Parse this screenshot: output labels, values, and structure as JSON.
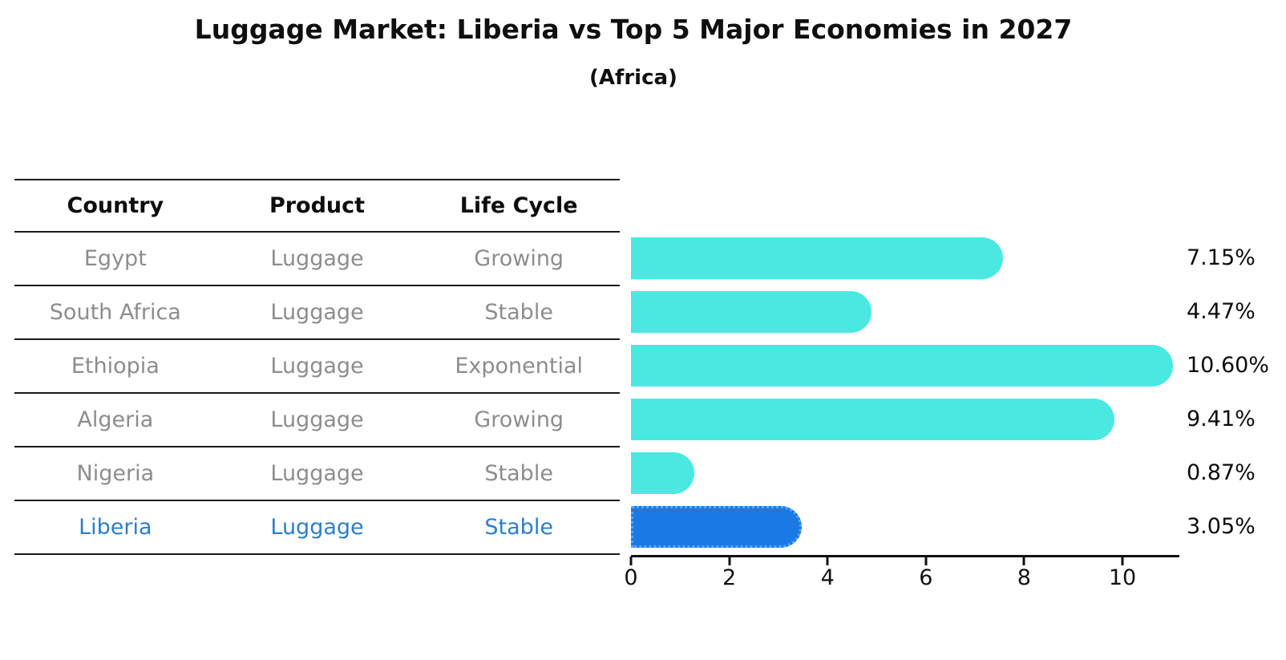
{
  "title": "Luggage Market: Liberia vs Top 5 Major Economies in 2027",
  "subtitle": "(Africa)",
  "table": {
    "headers": [
      "Country",
      "Product",
      "Life Cycle"
    ],
    "rows": [
      {
        "country": "Egypt",
        "product": "Luggage",
        "life_cycle": "Growing",
        "highlighted": false
      },
      {
        "country": "South Africa",
        "product": "Luggage",
        "life_cycle": "Stable",
        "highlighted": false
      },
      {
        "country": "Ethiopia",
        "product": "Luggage",
        "life_cycle": "Exponential",
        "highlighted": false
      },
      {
        "country": "Algeria",
        "product": "Luggage",
        "life_cycle": "Growing",
        "highlighted": false
      },
      {
        "country": "Nigeria",
        "product": "Luggage",
        "life_cycle": "Stable",
        "highlighted": false
      },
      {
        "country": "Liberia",
        "product": "Luggage",
        "life_cycle": "Stable",
        "highlighted": true
      }
    ]
  },
  "chart_data": {
    "type": "bar",
    "orientation": "horizontal",
    "title": "Luggage Market: Liberia vs Top 5 Major Economies in 2027",
    "subtitle": "(Africa)",
    "categories": [
      "Egypt",
      "South Africa",
      "Ethiopia",
      "Algeria",
      "Nigeria",
      "Liberia"
    ],
    "values": [
      7.15,
      4.47,
      10.6,
      9.41,
      0.87,
      3.05
    ],
    "value_labels": [
      "7.15%",
      "4.47%",
      "10.60%",
      "9.41%",
      "0.87%",
      "3.05%"
    ],
    "unit": "%",
    "highlight_category": "Liberia",
    "x_ticks": [
      "0",
      "2",
      "4",
      "6",
      "8",
      "10"
    ],
    "x_tick_values": [
      0,
      2,
      4,
      6,
      8,
      10
    ],
    "xlim": [
      0,
      11.15
    ],
    "grid": false,
    "legend": false,
    "colors": {
      "default_bar": "#49e9e2",
      "highlight_bar": "#1b79e6",
      "highlight_bar_border": "#5aa6f0",
      "highlight_text": "#2d7ecb",
      "row_text": "#8d8d8d",
      "header_text": "#0d0d0d",
      "axis": "#111111"
    }
  }
}
